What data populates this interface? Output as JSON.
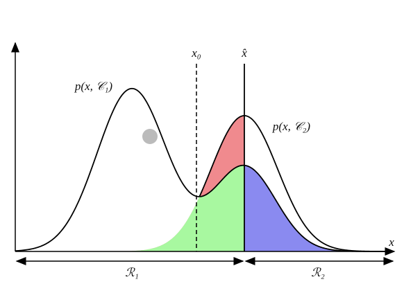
{
  "labels": {
    "p_c1": "p(x, 𝒞₁)",
    "p_c2": "p(x, 𝒞₂)",
    "x0": "x₀",
    "xhat": "x̂",
    "x_axis": "x",
    "r1": "ℛ₁",
    "r2": "ℛ₂"
  }
}
